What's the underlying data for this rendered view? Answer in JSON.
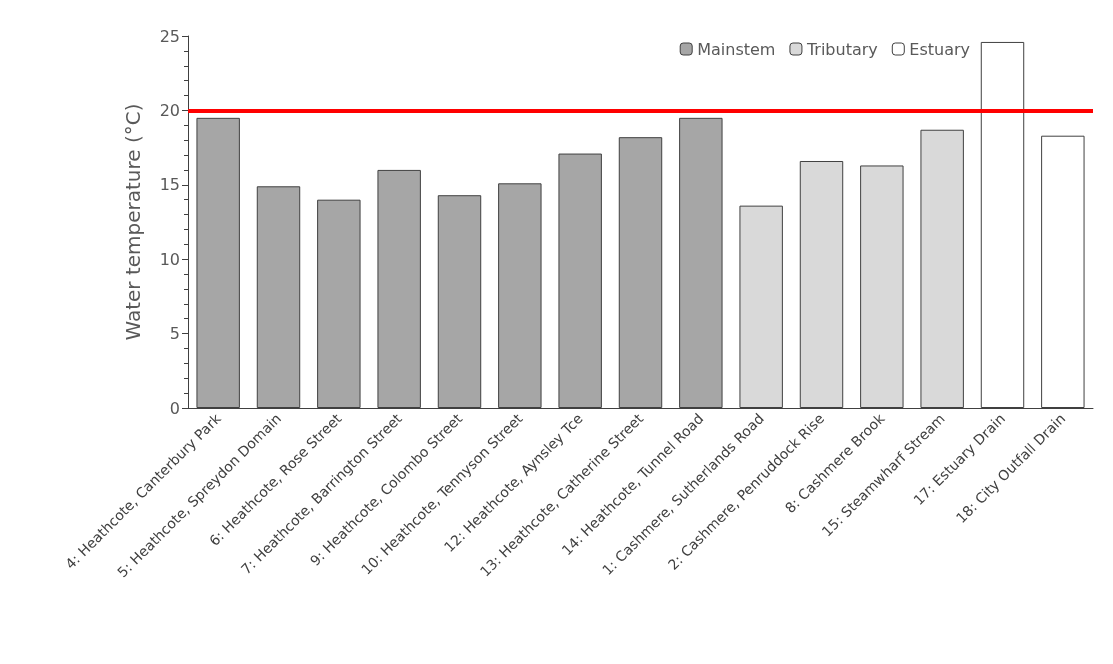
{
  "chart_data": {
    "type": "bar",
    "ylabel": "Water temperature (°C)",
    "categories": [
      "4: Heathcote, Canterbury Park",
      "5: Heathcote, Spreydon Domain",
      "6: Heathcote, Rose Street",
      "7: Heathcote, Barrington Street",
      "9: Heathcote, Colombo Street",
      "10: Heathcote, Tennyson Street",
      "12: Heathcote, Aynsley Tce",
      "13: Heathcote, Catherine Street",
      "14: Heathcote, Tunnel Road",
      "1: Cashmere, Sutherlands Road",
      "2: Cashmere, Penruddock Rise",
      "8: Cashmere Brook",
      "15: Steamwharf Stream",
      "17: Estuary Drain",
      "18: City Outfall Drain"
    ],
    "series": [
      {
        "name": "Mainstem",
        "color": "#a6a6a6",
        "values": [
          19.5,
          14.9,
          14.0,
          16.0,
          14.3,
          15.1,
          17.1,
          18.2,
          19.5,
          null,
          null,
          null,
          null,
          null,
          null
        ]
      },
      {
        "name": "Tributary",
        "color": "#d9d9d9",
        "values": [
          null,
          null,
          null,
          null,
          null,
          null,
          null,
          null,
          null,
          13.6,
          16.6,
          16.3,
          18.7,
          null,
          null
        ]
      },
      {
        "name": "Estuary",
        "color": "#ffffff",
        "values": [
          null,
          null,
          null,
          null,
          null,
          null,
          null,
          null,
          null,
          null,
          null,
          null,
          null,
          24.6,
          18.3
        ]
      }
    ],
    "ylim": [
      0,
      25
    ],
    "yticks": [
      0,
      5,
      10,
      15,
      20,
      25
    ],
    "grid": false,
    "legend": "top right",
    "ref_lines": [
      {
        "axis": "y",
        "value": 20,
        "color": "#ff0000"
      }
    ]
  }
}
